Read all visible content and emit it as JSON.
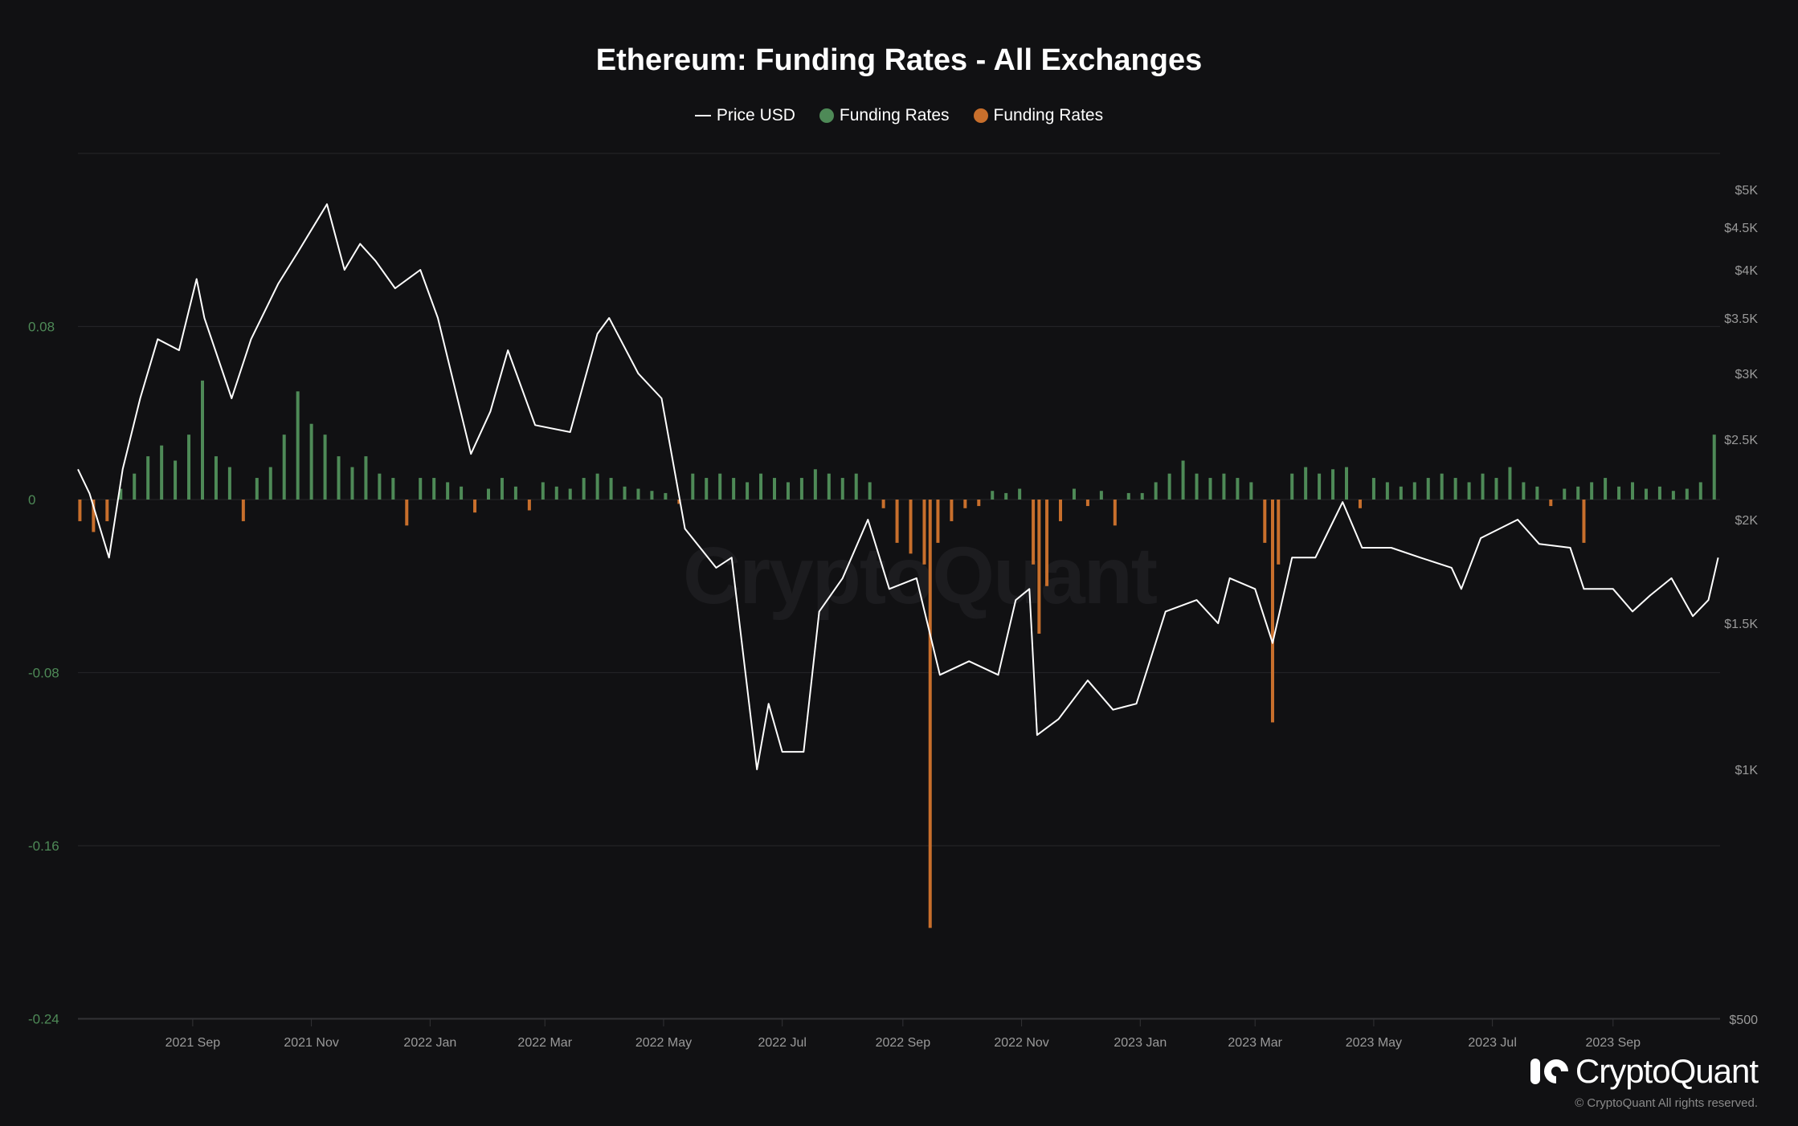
{
  "chart_data": {
    "type": "bar+line",
    "title": "Ethereum: Funding Rates - All Exchanges",
    "legend": [
      {
        "name": "Price USD",
        "color": "#ffffff",
        "marker": "line"
      },
      {
        "name": "Funding Rates",
        "color": "#4e8a57",
        "marker": "dot"
      },
      {
        "name": "Funding Rates",
        "color": "#c86f2c",
        "marker": "dot"
      }
    ],
    "legend_position": "top",
    "grid": true,
    "x_range": [
      "2021-07-04",
      "2023-10-26"
    ],
    "x_ticks": [
      "2021 Sep",
      "2021 Nov",
      "2022 Jan",
      "2022 Mar",
      "2022 May",
      "2022 Jul",
      "2022 Sep",
      "2022 Nov",
      "2023 Jan",
      "2023 Mar",
      "2023 May",
      "2023 Jul",
      "2023 Sep"
    ],
    "x_tick_dates": [
      "2021-09-01",
      "2021-11-01",
      "2022-01-01",
      "2022-03-01",
      "2022-05-01",
      "2022-07-01",
      "2022-09-01",
      "2022-11-01",
      "2023-01-01",
      "2023-03-01",
      "2023-05-01",
      "2023-07-01",
      "2023-09-01"
    ],
    "left_axis": {
      "ylim": [
        -0.24,
        0.16
      ],
      "ticks": [
        0.08,
        0,
        -0.08,
        -0.16,
        -0.24
      ],
      "tick_labels": [
        "0.08",
        "0",
        "-0.08",
        "-0.16",
        "-0.24"
      ]
    },
    "right_axis": {
      "scale": "log",
      "ticks": [
        5000,
        4500,
        4000,
        3500,
        3000,
        2500,
        2000,
        1500,
        1000,
        500
      ],
      "tick_labels": [
        "$5K",
        "$4.5K",
        "$4K",
        "$3.5K",
        "$3K",
        "$2.5K",
        "$2K",
        "$1.5K",
        "$1K",
        "$500"
      ]
    },
    "positive_color": "#4e8a57",
    "negative_color": "#c86f2c",
    "price": [
      [
        "2021-07-04",
        2300
      ],
      [
        "2021-07-10",
        2150
      ],
      [
        "2021-07-20",
        1800
      ],
      [
        "2021-07-27",
        2300
      ],
      [
        "2021-08-05",
        2800
      ],
      [
        "2021-08-14",
        3300
      ],
      [
        "2021-08-25",
        3200
      ],
      [
        "2021-09-03",
        3900
      ],
      [
        "2021-09-07",
        3500
      ],
      [
        "2021-09-21",
        2800
      ],
      [
        "2021-10-01",
        3300
      ],
      [
        "2021-10-15",
        3850
      ],
      [
        "2021-10-25",
        4200
      ],
      [
        "2021-11-09",
        4800
      ],
      [
        "2021-11-18",
        4000
      ],
      [
        "2021-11-26",
        4300
      ],
      [
        "2021-12-04",
        4100
      ],
      [
        "2021-12-14",
        3800
      ],
      [
        "2021-12-27",
        4000
      ],
      [
        "2022-01-05",
        3500
      ],
      [
        "2022-01-22",
        2400
      ],
      [
        "2022-02-01",
        2700
      ],
      [
        "2022-02-10",
        3200
      ],
      [
        "2022-02-24",
        2600
      ],
      [
        "2022-03-14",
        2550
      ],
      [
        "2022-03-28",
        3350
      ],
      [
        "2022-04-03",
        3500
      ],
      [
        "2022-04-18",
        3000
      ],
      [
        "2022-04-30",
        2800
      ],
      [
        "2022-05-12",
        1950
      ],
      [
        "2022-05-28",
        1750
      ],
      [
        "2022-06-05",
        1800
      ],
      [
        "2022-06-18",
        1000
      ],
      [
        "2022-06-24",
        1200
      ],
      [
        "2022-07-01",
        1050
      ],
      [
        "2022-07-12",
        1050
      ],
      [
        "2022-07-20",
        1550
      ],
      [
        "2022-08-01",
        1700
      ],
      [
        "2022-08-14",
        2000
      ],
      [
        "2022-08-25",
        1650
      ],
      [
        "2022-09-08",
        1700
      ],
      [
        "2022-09-20",
        1300
      ],
      [
        "2022-10-05",
        1350
      ],
      [
        "2022-10-20",
        1300
      ],
      [
        "2022-10-29",
        1600
      ],
      [
        "2022-11-05",
        1650
      ],
      [
        "2022-11-09",
        1100
      ],
      [
        "2022-11-20",
        1150
      ],
      [
        "2022-12-05",
        1280
      ],
      [
        "2022-12-18",
        1180
      ],
      [
        "2022-12-30",
        1200
      ],
      [
        "2023-01-14",
        1550
      ],
      [
        "2023-01-30",
        1600
      ],
      [
        "2023-02-10",
        1500
      ],
      [
        "2023-02-16",
        1700
      ],
      [
        "2023-03-01",
        1650
      ],
      [
        "2023-03-10",
        1420
      ],
      [
        "2023-03-20",
        1800
      ],
      [
        "2023-04-01",
        1800
      ],
      [
        "2023-04-15",
        2100
      ],
      [
        "2023-04-25",
        1850
      ],
      [
        "2023-05-10",
        1850
      ],
      [
        "2023-05-25",
        1800
      ],
      [
        "2023-06-10",
        1750
      ],
      [
        "2023-06-15",
        1650
      ],
      [
        "2023-06-25",
        1900
      ],
      [
        "2023-07-14",
        2000
      ],
      [
        "2023-07-25",
        1870
      ],
      [
        "2023-08-10",
        1850
      ],
      [
        "2023-08-17",
        1650
      ],
      [
        "2023-09-01",
        1650
      ],
      [
        "2023-09-11",
        1550
      ],
      [
        "2023-09-20",
        1620
      ],
      [
        "2023-10-01",
        1700
      ],
      [
        "2023-10-12",
        1530
      ],
      [
        "2023-10-20",
        1600
      ],
      [
        "2023-10-25",
        1800
      ]
    ],
    "funding_rates": [
      [
        "2021-07-05",
        -0.01
      ],
      [
        "2021-07-12",
        -0.015
      ],
      [
        "2021-07-19",
        -0.01
      ],
      [
        "2021-07-26",
        0.005
      ],
      [
        "2021-08-02",
        0.012
      ],
      [
        "2021-08-09",
        0.02
      ],
      [
        "2021-08-16",
        0.025
      ],
      [
        "2021-08-23",
        0.018
      ],
      [
        "2021-08-30",
        0.03
      ],
      [
        "2021-09-06",
        0.055
      ],
      [
        "2021-09-13",
        0.02
      ],
      [
        "2021-09-20",
        0.015
      ],
      [
        "2021-09-27",
        -0.01
      ],
      [
        "2021-10-04",
        0.01
      ],
      [
        "2021-10-11",
        0.015
      ],
      [
        "2021-10-18",
        0.03
      ],
      [
        "2021-10-25",
        0.05
      ],
      [
        "2021-11-01",
        0.035
      ],
      [
        "2021-11-08",
        0.03
      ],
      [
        "2021-11-15",
        0.02
      ],
      [
        "2021-11-22",
        0.015
      ],
      [
        "2021-11-29",
        0.02
      ],
      [
        "2021-12-06",
        0.012
      ],
      [
        "2021-12-13",
        0.01
      ],
      [
        "2021-12-20",
        -0.012
      ],
      [
        "2021-12-27",
        0.01
      ],
      [
        "2022-01-03",
        0.01
      ],
      [
        "2022-01-10",
        0.008
      ],
      [
        "2022-01-17",
        0.006
      ],
      [
        "2022-01-24",
        -0.006
      ],
      [
        "2022-01-31",
        0.005
      ],
      [
        "2022-02-07",
        0.01
      ],
      [
        "2022-02-14",
        0.006
      ],
      [
        "2022-02-21",
        -0.005
      ],
      [
        "2022-02-28",
        0.008
      ],
      [
        "2022-03-07",
        0.006
      ],
      [
        "2022-03-14",
        0.005
      ],
      [
        "2022-03-21",
        0.01
      ],
      [
        "2022-03-28",
        0.012
      ],
      [
        "2022-04-04",
        0.01
      ],
      [
        "2022-04-11",
        0.006
      ],
      [
        "2022-04-18",
        0.005
      ],
      [
        "2022-04-25",
        0.004
      ],
      [
        "2022-05-02",
        0.003
      ],
      [
        "2022-05-09",
        -0.002
      ],
      [
        "2022-05-16",
        0.012
      ],
      [
        "2022-05-23",
        0.01
      ],
      [
        "2022-05-30",
        0.012
      ],
      [
        "2022-06-06",
        0.01
      ],
      [
        "2022-06-13",
        0.008
      ],
      [
        "2022-06-20",
        0.012
      ],
      [
        "2022-06-27",
        0.01
      ],
      [
        "2022-07-04",
        0.008
      ],
      [
        "2022-07-11",
        0.01
      ],
      [
        "2022-07-18",
        0.014
      ],
      [
        "2022-07-25",
        0.012
      ],
      [
        "2022-08-01",
        0.01
      ],
      [
        "2022-08-08",
        0.012
      ],
      [
        "2022-08-15",
        0.008
      ],
      [
        "2022-08-22",
        -0.004
      ],
      [
        "2022-08-29",
        -0.02
      ],
      [
        "2022-09-05",
        -0.025
      ],
      [
        "2022-09-12",
        -0.03
      ],
      [
        "2022-09-15",
        -0.198
      ],
      [
        "2022-09-19",
        -0.02
      ],
      [
        "2022-09-26",
        -0.01
      ],
      [
        "2022-10-03",
        -0.004
      ],
      [
        "2022-10-10",
        -0.003
      ],
      [
        "2022-10-17",
        0.004
      ],
      [
        "2022-10-24",
        0.003
      ],
      [
        "2022-10-31",
        0.005
      ],
      [
        "2022-11-07",
        -0.03
      ],
      [
        "2022-11-10",
        -0.062
      ],
      [
        "2022-11-14",
        -0.04
      ],
      [
        "2022-11-21",
        -0.01
      ],
      [
        "2022-11-28",
        0.005
      ],
      [
        "2022-12-05",
        -0.003
      ],
      [
        "2022-12-12",
        0.004
      ],
      [
        "2022-12-19",
        -0.012
      ],
      [
        "2022-12-26",
        0.003
      ],
      [
        "2023-01-02",
        0.003
      ],
      [
        "2023-01-09",
        0.008
      ],
      [
        "2023-01-16",
        0.012
      ],
      [
        "2023-01-23",
        0.018
      ],
      [
        "2023-01-30",
        0.012
      ],
      [
        "2023-02-06",
        0.01
      ],
      [
        "2023-02-13",
        0.012
      ],
      [
        "2023-02-20",
        0.01
      ],
      [
        "2023-02-27",
        0.008
      ],
      [
        "2023-03-06",
        -0.02
      ],
      [
        "2023-03-10",
        -0.103
      ],
      [
        "2023-03-13",
        -0.03
      ],
      [
        "2023-03-20",
        0.012
      ],
      [
        "2023-03-27",
        0.015
      ],
      [
        "2023-04-03",
        0.012
      ],
      [
        "2023-04-10",
        0.014
      ],
      [
        "2023-04-17",
        0.015
      ],
      [
        "2023-04-24",
        -0.004
      ],
      [
        "2023-05-01",
        0.01
      ],
      [
        "2023-05-08",
        0.008
      ],
      [
        "2023-05-15",
        0.006
      ],
      [
        "2023-05-22",
        0.008
      ],
      [
        "2023-05-29",
        0.01
      ],
      [
        "2023-06-05",
        0.012
      ],
      [
        "2023-06-12",
        0.01
      ],
      [
        "2023-06-19",
        0.008
      ],
      [
        "2023-06-26",
        0.012
      ],
      [
        "2023-07-03",
        0.01
      ],
      [
        "2023-07-10",
        0.015
      ],
      [
        "2023-07-17",
        0.008
      ],
      [
        "2023-07-24",
        0.006
      ],
      [
        "2023-07-31",
        -0.003
      ],
      [
        "2023-08-07",
        0.005
      ],
      [
        "2023-08-14",
        0.006
      ],
      [
        "2023-08-17",
        -0.02
      ],
      [
        "2023-08-21",
        0.008
      ],
      [
        "2023-08-28",
        0.01
      ],
      [
        "2023-09-04",
        0.006
      ],
      [
        "2023-09-11",
        0.008
      ],
      [
        "2023-09-18",
        0.005
      ],
      [
        "2023-09-25",
        0.006
      ],
      [
        "2023-10-02",
        0.004
      ],
      [
        "2023-10-09",
        0.005
      ],
      [
        "2023-10-16",
        0.008
      ],
      [
        "2023-10-23",
        0.03
      ]
    ]
  },
  "branding": {
    "watermark": "CryptoQuant",
    "logo_text": "CryptoQuant",
    "copyright": "© CryptoQuant All rights reserved."
  }
}
